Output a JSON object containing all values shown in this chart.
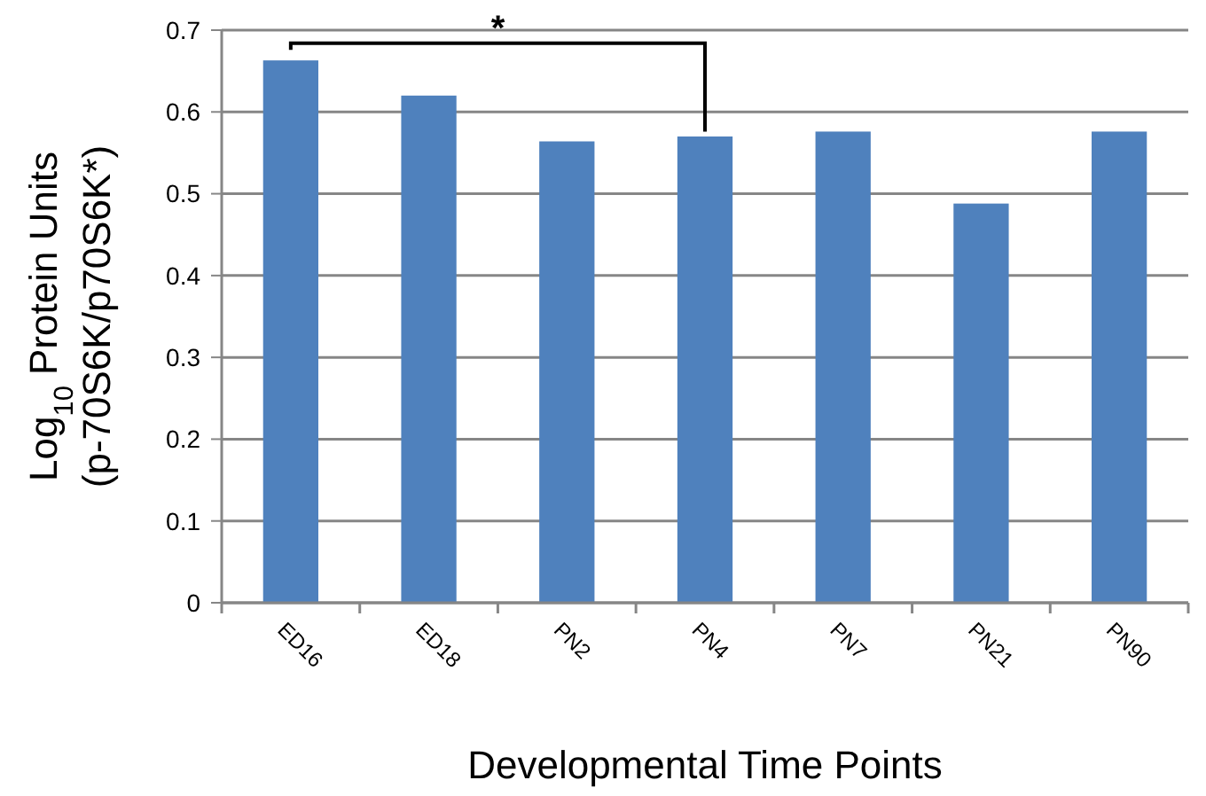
{
  "chart_data": {
    "type": "bar",
    "xlabel": "Developmental Time Points",
    "ylabel": "Log$_{10}$ Protein Units\n(p-70S6K/p70S6K*)",
    "categories": [
      "ED16",
      "ED18",
      "PN2",
      "PN4",
      "PN7",
      "PN21",
      "PN90"
    ],
    "values": [
      0.663,
      0.62,
      0.564,
      0.57,
      0.576,
      0.488,
      0.576
    ],
    "color": "#4f81bd",
    "ylim": [
      0,
      0.7
    ],
    "yticks": [
      0,
      0.1,
      0.2,
      0.3,
      0.4,
      0.5,
      0.6,
      0.7
    ],
    "grid": "y",
    "annotations": [
      "*"
    ]
  }
}
